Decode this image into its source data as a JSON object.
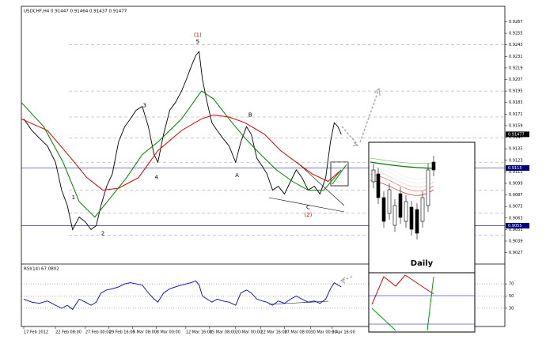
{
  "chart_data": [
    {
      "type": "line",
      "title": "USDCHF,H4 0.91447 0.91464 0.91437 0.91477",
      "last_price_label": "0.91477",
      "xlim": [
        0,
        102
      ],
      "ylim": [
        0.9016,
        0.9283
      ],
      "xticks": [
        {
          "value": 0.5,
          "label": "17 Feb 2012"
        },
        {
          "value": 7.2,
          "label": "22 Feb 08:00"
        },
        {
          "value": 13.5,
          "label": "27 Feb 00:00"
        },
        {
          "value": 18.5,
          "label": "29 Feb 16:00"
        },
        {
          "value": 23.5,
          "label": "5 Mar 08:00"
        },
        {
          "value": 28.5,
          "label": "8 Mar 00:00"
        },
        {
          "value": 34.7,
          "label": "12 Mar 16:00"
        },
        {
          "value": 39.7,
          "label": "15 Mar 08:00"
        },
        {
          "value": 45.2,
          "label": "20 Mar 00:00"
        },
        {
          "value": 50.5,
          "label": "22 Mar 16:00"
        },
        {
          "value": 55.5,
          "label": "27 Mar 08:00"
        },
        {
          "value": 61,
          "label": "30 Mar 00:00"
        },
        {
          "value": 65.5,
          "label": "3 Apr 16:00"
        }
      ],
      "yticks": [
        0.9267,
        0.9255,
        0.9243,
        0.9231,
        0.9219,
        0.9207,
        0.9195,
        0.9183,
        0.9171,
        0.9159,
        0.9147,
        0.9135,
        0.9123,
        0.9111,
        0.9099,
        0.9087,
        0.9075,
        0.9063,
        0.9051,
        0.9039,
        0.9027
      ],
      "levels": [
        0.9243,
        0.9195,
        0.9168,
        0.9146,
        0.9121,
        0.9092,
        0.9068,
        0.9045
      ],
      "hlines": [
        0.9115,
        0.9055
      ],
      "series": [
        {
          "color": "#000000",
          "x": [
            0.5,
            2.2,
            3.8,
            5.5,
            7.2,
            8.5,
            9.7,
            10.8,
            12.2,
            13.5,
            14.7,
            15.8,
            16.8,
            18,
            19.2,
            20.5,
            21.8,
            23,
            24.2,
            25.5,
            26.8,
            28,
            28.8,
            30,
            31.3,
            32.5,
            33.8,
            34.8,
            35.8,
            36.8,
            37.5,
            38.2,
            39.2,
            40.2,
            41.3,
            42.5,
            43.8,
            45.2,
            46.3,
            47.5,
            48.5,
            49.7,
            50.8,
            51.8,
            53,
            54.2,
            55.5,
            56.8,
            58,
            59.2,
            60.5,
            61.8,
            63,
            64.2,
            65.2,
            66,
            66.8,
            67.5
          ],
          "values": [
            0.9166,
            0.9154,
            0.9146,
            0.9138,
            0.9121,
            0.9092,
            0.9076,
            0.9051,
            0.9064,
            0.9059,
            0.9051,
            0.9055,
            0.9076,
            0.9096,
            0.9109,
            0.9142,
            0.9158,
            0.9166,
            0.9175,
            0.9179,
            0.9158,
            0.9129,
            0.9121,
            0.915,
            0.9175,
            0.9183,
            0.9195,
            0.9207,
            0.922,
            0.9232,
            0.9236,
            0.9207,
            0.9183,
            0.9162,
            0.9154,
            0.9146,
            0.9138,
            0.9121,
            0.9142,
            0.9158,
            0.915,
            0.9125,
            0.9117,
            0.9109,
            0.9092,
            0.9096,
            0.9088,
            0.9101,
            0.9113,
            0.9105,
            0.9092,
            0.9096,
            0.9088,
            0.9105,
            0.9142,
            0.9162,
            0.9158,
            0.915
          ]
        },
        {
          "color": "#e00000",
          "x": [
            0,
            5.5,
            10.5,
            13.8,
            17.2,
            20.5,
            24.7,
            28.8,
            33.8,
            38,
            40.5,
            43.8,
            47.2,
            51.3,
            54.7,
            58,
            61.3,
            64.7,
            67.5
          ],
          "values": [
            0.9166,
            0.9154,
            0.9125,
            0.9105,
            0.9092,
            0.9094,
            0.9105,
            0.9133,
            0.9154,
            0.9166,
            0.917,
            0.9168,
            0.9162,
            0.915,
            0.9133,
            0.9121,
            0.9109,
            0.9101,
            0.9113
          ]
        },
        {
          "color": "#008000",
          "x": [
            0,
            4.7,
            8.8,
            12.2,
            15.5,
            18.8,
            22.2,
            25.5,
            28.8,
            33.8,
            38,
            40.5,
            43.8,
            47.2,
            50.5,
            53.8,
            57.2,
            60.5,
            63.8,
            67.5
          ],
          "values": [
            0.9183,
            0.9158,
            0.9121,
            0.908,
            0.9064,
            0.9084,
            0.9105,
            0.9129,
            0.9142,
            0.9166,
            0.9195,
            0.9187,
            0.9166,
            0.9146,
            0.9129,
            0.9113,
            0.9101,
            0.9092,
            0.9092,
            0.9113
          ]
        }
      ],
      "annotations": [
        {
          "text": "(1)",
          "x": 37.2,
          "y": 0.9253,
          "color": "#e00000"
        },
        {
          "text": "5",
          "x": 37.2,
          "y": 0.9246,
          "color": "#000000"
        },
        {
          "text": "3",
          "x": 26,
          "y": 0.918,
          "color": "#000000"
        },
        {
          "text": "4",
          "x": 28.5,
          "y": 0.9105,
          "color": "#000000"
        },
        {
          "text": "1",
          "x": 11,
          "y": 0.9084,
          "color": "#000000"
        },
        {
          "text": "2",
          "x": 17.2,
          "y": 0.9047,
          "color": "#000000"
        },
        {
          "text": "B",
          "x": 48.3,
          "y": 0.917,
          "color": "#000000"
        },
        {
          "text": "A",
          "x": 45.5,
          "y": 0.9107,
          "color": "#000000"
        },
        {
          "text": "C",
          "x": 60.5,
          "y": 0.9074,
          "color": "#000000"
        },
        {
          "text": "(2)",
          "x": 60.5,
          "y": 0.9066,
          "color": "#e00000"
        }
      ]
    },
    {
      "type": "line",
      "title": "RSI(14) 67.0802",
      "xlim": [
        0,
        102
      ],
      "ylim": [
        0,
        100
      ],
      "yticks": [
        30,
        50,
        70
      ],
      "series": [
        {
          "color": "#0000cc",
          "x": [
            0.5,
            2.2,
            3.8,
            5.5,
            7.2,
            8.5,
            9.7,
            10.8,
            12.2,
            13.5,
            14.7,
            15.8,
            16.8,
            18,
            19.2,
            20.5,
            21.8,
            23,
            24.2,
            25.5,
            26.8,
            28,
            28.8,
            30,
            31.3,
            32.5,
            33.8,
            34.8,
            35.8,
            36.8,
            37.5,
            38.2,
            39.2,
            40.2,
            41.3,
            42.5,
            43.8,
            45.2,
            46.3,
            47.5,
            48.5,
            49.7,
            50.8,
            51.8,
            53,
            54.2,
            55.5,
            56.8,
            58,
            59.2,
            60.5,
            61.8,
            63,
            64.2,
            65.2,
            66,
            66.8,
            67.5
          ],
          "values": [
            45,
            40,
            38,
            42,
            35,
            30,
            35,
            28,
            45,
            40,
            35,
            40,
            55,
            60,
            62,
            65,
            70,
            72,
            70,
            68,
            55,
            45,
            40,
            55,
            62,
            65,
            68,
            70,
            72,
            75,
            68,
            50,
            45,
            40,
            45,
            42,
            40,
            35,
            55,
            60,
            55,
            45,
            42,
            40,
            35,
            42,
            38,
            45,
            50,
            45,
            40,
            42,
            38,
            45,
            62,
            72,
            68,
            65
          ]
        }
      ]
    }
  ],
  "inset_title": "Daily"
}
